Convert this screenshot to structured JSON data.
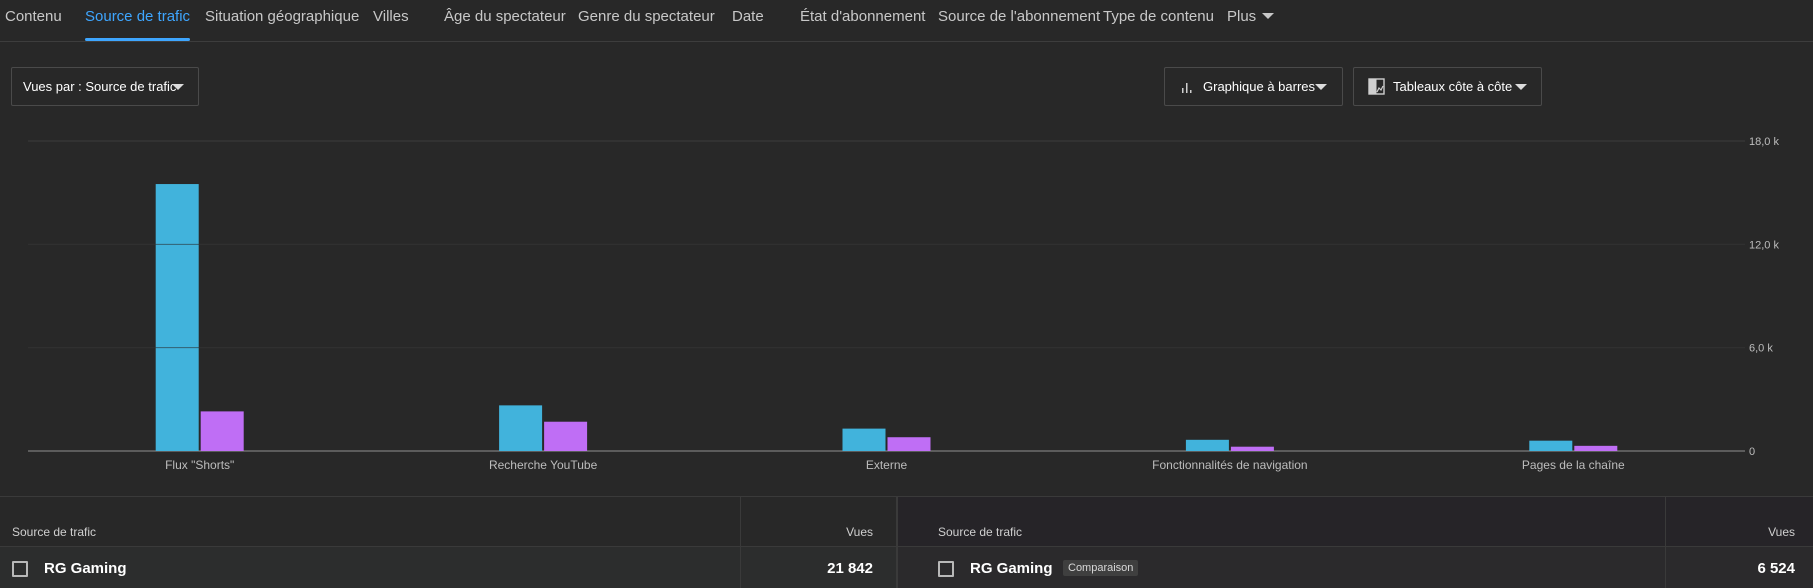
{
  "tabs": [
    {
      "label": "Contenu",
      "active": false
    },
    {
      "label": "Source de trafic",
      "active": true
    },
    {
      "label": "Situation géographique",
      "active": false
    },
    {
      "label": "Villes",
      "active": false
    },
    {
      "label": "Âge du spectateur",
      "active": false
    },
    {
      "label": "Genre du spectateur",
      "active": false
    },
    {
      "label": "Date",
      "active": false
    },
    {
      "label": "État d'abonnement",
      "active": false
    },
    {
      "label": "Source de l'abonnement",
      "active": false
    },
    {
      "label": "Type de contenu",
      "active": false
    },
    {
      "label": "Plus",
      "active": false
    }
  ],
  "controls": {
    "view_by": "Vues par : Source de trafic",
    "chart_type": "Graphique à barres",
    "layout": "Tableaux côte à côte"
  },
  "colors": {
    "series_primary": "#41b3dc",
    "series_compare": "#bf6ef5",
    "accent": "#3ea6ff"
  },
  "chart_data": {
    "type": "bar",
    "categories": [
      "Flux \"Shorts\"",
      "Recherche YouTube",
      "Externe",
      "Fonctionnalités de navigation",
      "Pages de la chaîne"
    ],
    "series": [
      {
        "values": [
          15500,
          2650,
          1300,
          650,
          600
        ]
      },
      {
        "values": [
          2300,
          1700,
          800,
          250,
          300
        ]
      }
    ],
    "ylim": [
      0,
      18000
    ],
    "y_ticks": [
      0,
      6000,
      12000,
      18000
    ],
    "y_tick_labels": [
      "0",
      "6,0 k",
      "12,0 k",
      "18,0 k"
    ],
    "grid": true,
    "y_axis_position": "right"
  },
  "table": {
    "left": {
      "col_source": "Source de trafic",
      "col_views": "Vues",
      "row": {
        "name": "RG Gaming",
        "views": "21 842"
      }
    },
    "right": {
      "col_source": "Source de trafic",
      "col_views": "Vues",
      "row": {
        "name": "RG Gaming",
        "badge": "Comparaison",
        "views": "6 524"
      }
    }
  }
}
